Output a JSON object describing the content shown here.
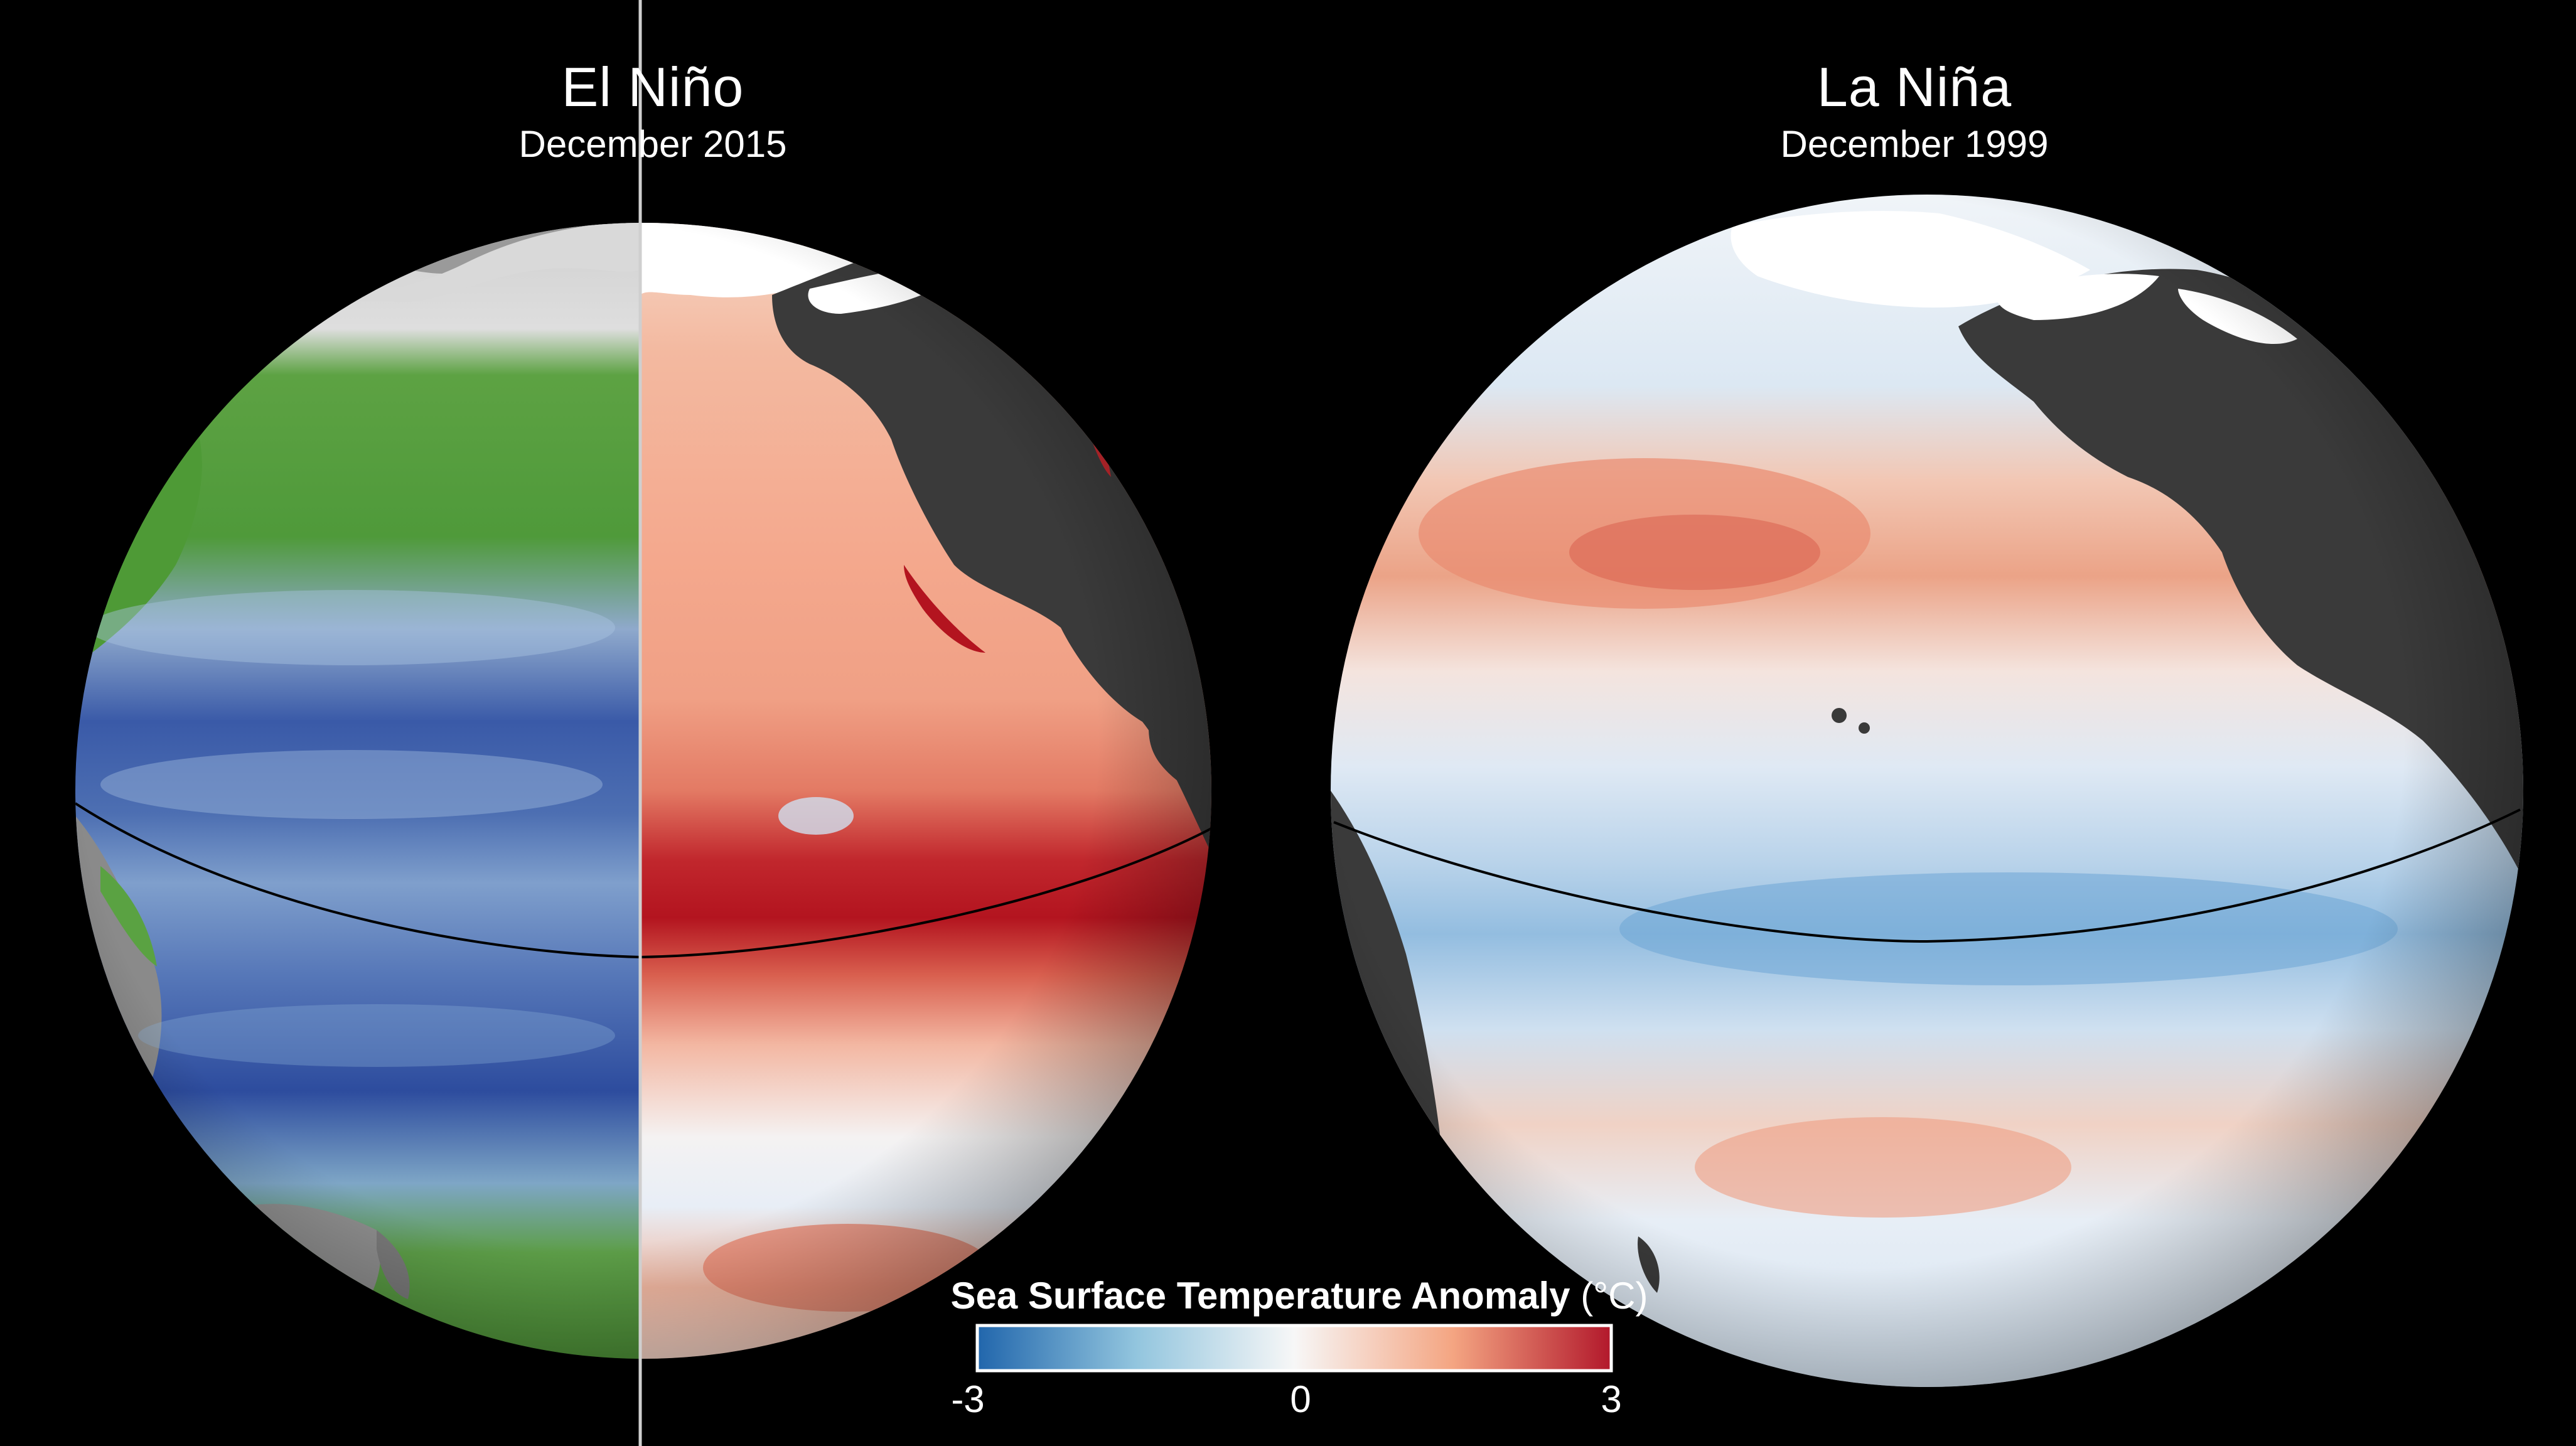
{
  "panels": [
    {
      "title": "El Niño",
      "subtitle": "December 2015"
    },
    {
      "title": "La Niña",
      "subtitle": "December 1999"
    }
  ],
  "legend": {
    "title": "Sea Surface Temperature Anomaly",
    "unit": "(°C)",
    "min_label": "-3",
    "mid_label": "0",
    "max_label": "3",
    "min": -3,
    "max": 3,
    "colors": [
      "#2166ac",
      "#92c5de",
      "#f7f7f7",
      "#f4a582",
      "#b2182b"
    ]
  },
  "colors": {
    "background": "#000000",
    "land": "#3a3a3a",
    "ice": "#ffffff",
    "equator": "#000000",
    "divider": "#cfcfcf",
    "vegetation_green": "#4f9a3a",
    "vegetation_blue": "#3a5aa8"
  }
}
